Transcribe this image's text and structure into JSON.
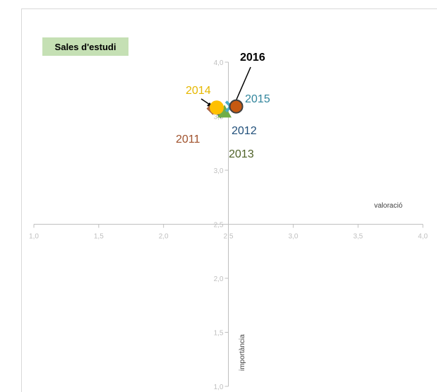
{
  "chart_data": {
    "type": "scatter",
    "title": "Sales d'estudi",
    "xlabel": "valoració",
    "ylabel": "importància",
    "xlim": [
      1.0,
      4.0
    ],
    "ylim": [
      1.0,
      4.0
    ],
    "x_ticks": [
      "1,0",
      "1,5",
      "2,0",
      "2,5",
      "3,0",
      "3,5",
      "4,0"
    ],
    "y_ticks": [
      "1,0",
      "1,5",
      "2,0",
      "2,5",
      "3,0",
      "3,5",
      "4,0"
    ],
    "axis_cross": [
      2.5,
      2.5
    ],
    "grid": false,
    "series": [
      {
        "name": "2011",
        "x": 2.38,
        "y": 3.57,
        "color": "#a0522d",
        "marker": "diamond"
      },
      {
        "name": "2012",
        "x": 2.44,
        "y": 3.54,
        "color": "#1f4e79",
        "marker": "diamond"
      },
      {
        "name": "2013",
        "x": 2.47,
        "y": 3.54,
        "color": "#70ad47",
        "marker": "triangle"
      },
      {
        "name": "2014",
        "x": 2.41,
        "y": 3.58,
        "color": "#ffc000",
        "marker": "circle"
      },
      {
        "name": "2015",
        "x": 2.52,
        "y": 3.59,
        "color": "#4bacc6",
        "marker": "x"
      },
      {
        "name": "2016",
        "x": 2.56,
        "y": 3.59,
        "color": "#ed7d31",
        "marker": "circle"
      }
    ],
    "labels": [
      {
        "text": "2011",
        "color": "#a0522d",
        "bold": false
      },
      {
        "text": "2012",
        "color": "#1f4e79",
        "bold": false
      },
      {
        "text": "2013",
        "color": "#4f6228",
        "bold": false
      },
      {
        "text": "2014",
        "color": "#e6b800",
        "bold": false
      },
      {
        "text": "2015",
        "color": "#31859c",
        "bold": false
      },
      {
        "text": "2016",
        "color": "#000000",
        "bold": true
      }
    ]
  }
}
